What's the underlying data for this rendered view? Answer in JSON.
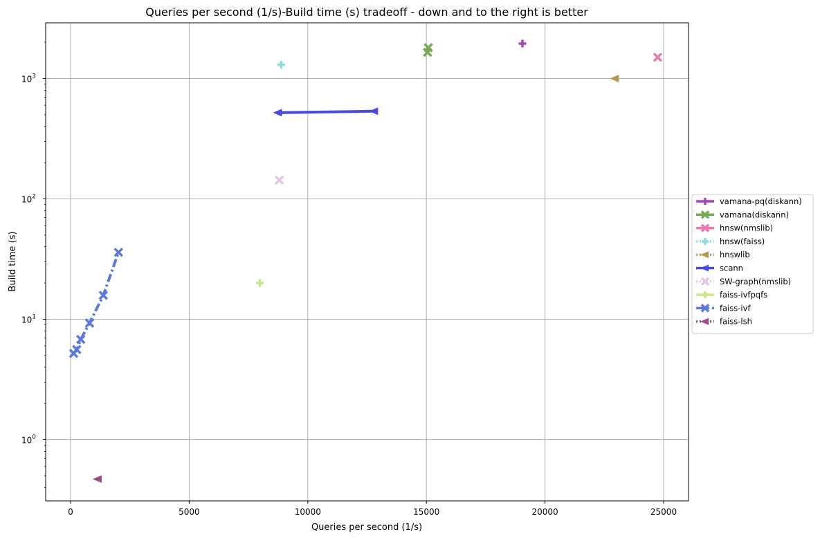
{
  "chart_data": {
    "type": "line",
    "title": "Queries per second (1/s)-Build time (s) tradeoff - down and to the right is better",
    "xlabel": "Queries per second (1/s)",
    "ylabel": "Build time (s)",
    "xlim": [
      -1050,
      26050
    ],
    "ylim": [
      0.31,
      2900
    ],
    "yscale": "log",
    "grid": true,
    "legend_position": "right-center",
    "x_ticks": [
      0,
      5000,
      10000,
      15000,
      20000,
      25000
    ],
    "x_tick_labels": [
      "0",
      "5000",
      "10000",
      "15000",
      "20000",
      "25000"
    ],
    "y_ticks": [
      1,
      10,
      100,
      1000
    ],
    "y_tick_base": "10",
    "y_tick_exponents": [
      "0",
      "1",
      "2",
      "3"
    ],
    "series": [
      {
        "name": "vamana-pq(diskann)",
        "color": "#aa44bb",
        "marker": "plus",
        "linestyle": "solid",
        "points": [
          [
            19050,
            1950
          ]
        ]
      },
      {
        "name": "vamana(diskann)",
        "color": "#77aa55",
        "marker": "x",
        "linestyle": "solid",
        "points": [
          [
            15050,
            1650
          ],
          [
            15080,
            1800
          ]
        ]
      },
      {
        "name": "hnsw(nmslib)",
        "color": "#e87aaf",
        "marker": "x",
        "linestyle": "solid",
        "points": [
          [
            24750,
            1500
          ]
        ]
      },
      {
        "name": "hnsw(faiss)",
        "color": "#88dddd",
        "marker": "plus",
        "linestyle": "dotted",
        "points": [
          [
            8880,
            1300
          ]
        ]
      },
      {
        "name": "hnswlib",
        "color": "#b09a4e",
        "marker": "triangle-left",
        "linestyle": "dotted",
        "points": [
          [
            22950,
            1000
          ]
        ]
      },
      {
        "name": "scann",
        "color": "#4a4ae0",
        "marker": "triangle-left",
        "linestyle": "solid",
        "points": [
          [
            8750,
            520
          ],
          [
            12800,
            535
          ]
        ]
      },
      {
        "name": "SW-graph(nmslib)",
        "color": "#e5c5e2",
        "marker": "x",
        "linestyle": "dotted",
        "points": [
          [
            8800,
            143
          ]
        ]
      },
      {
        "name": "faiss-ivfpqfs",
        "color": "#c8e690",
        "marker": "plus",
        "linestyle": "solid",
        "points": [
          [
            7980,
            20
          ]
        ]
      },
      {
        "name": "faiss-ivf",
        "color": "#5b78df",
        "marker": "x",
        "linestyle": "dashdot",
        "points": [
          [
            130,
            5.2
          ],
          [
            260,
            5.6
          ],
          [
            430,
            6.8
          ],
          [
            800,
            9.3
          ],
          [
            1380,
            15.8
          ],
          [
            2020,
            36
          ]
        ]
      },
      {
        "name": "faiss-lsh",
        "color": "#9b4a8a",
        "marker": "triangle-left",
        "linestyle": "dotted",
        "points": [
          [
            1150,
            0.47
          ]
        ]
      }
    ]
  }
}
